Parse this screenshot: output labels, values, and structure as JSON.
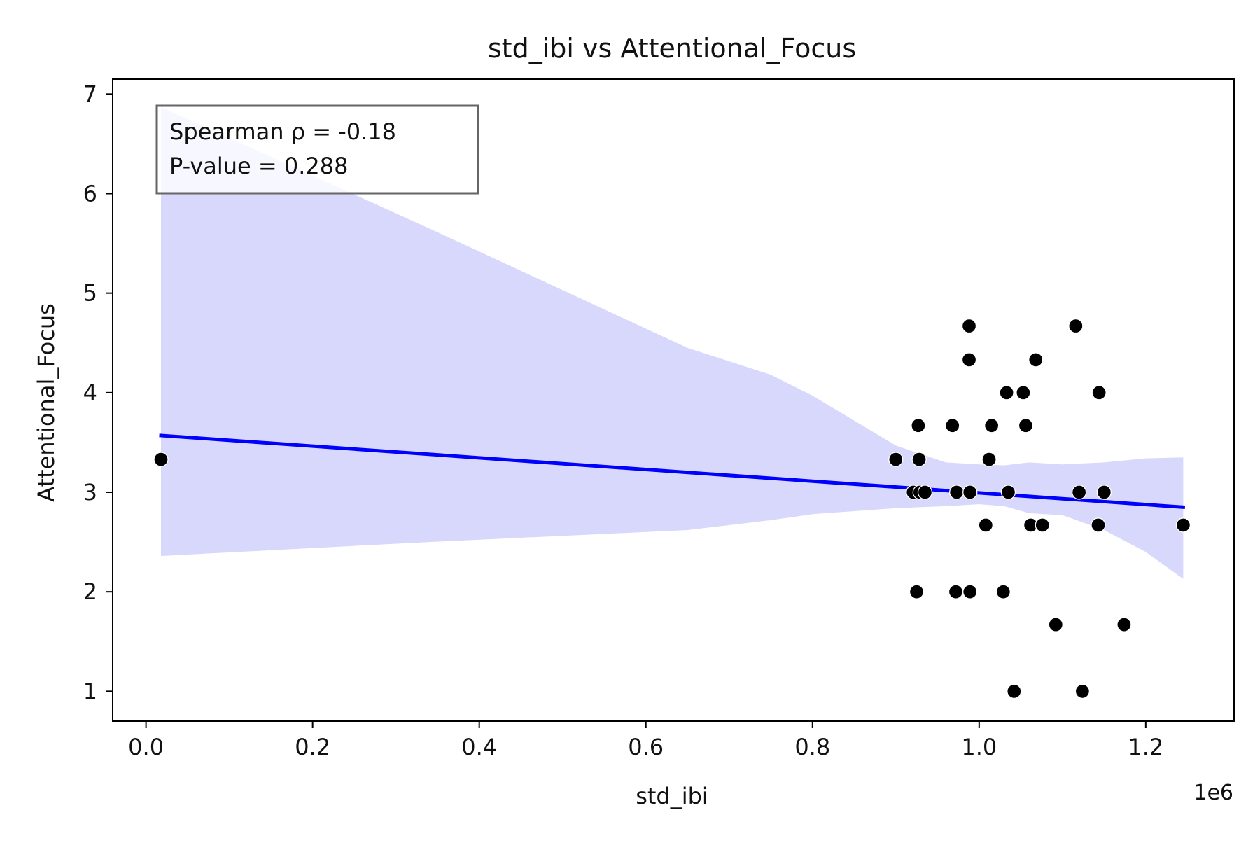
{
  "chart_data": {
    "type": "scatter",
    "title": "std_ibi vs Attentional_Focus",
    "xlabel": "std_ibi",
    "ylabel": "Attentional_Focus",
    "x_offset_label": "1e6",
    "x_tick_multiplier": 1000000,
    "xlim": [
      -40000,
      1306000
    ],
    "ylim": [
      0.7,
      7.15
    ],
    "x_ticks": [
      0.0,
      0.2,
      0.4,
      0.6,
      0.8,
      1.0,
      1.2
    ],
    "x_tick_labels": [
      "0.0",
      "0.2",
      "0.4",
      "0.6",
      "0.8",
      "1.0",
      "1.2"
    ],
    "y_ticks": [
      1,
      2,
      3,
      4,
      5,
      6,
      7
    ],
    "y_tick_labels": [
      "1",
      "2",
      "3",
      "4",
      "5",
      "6",
      "7"
    ],
    "grid": false,
    "annotation": {
      "lines": [
        "Spearman ρ = -0.18",
        "P-value = 0.288"
      ],
      "placement": "top-left"
    },
    "regression_line": {
      "x": [
        18000,
        1245000
      ],
      "y": [
        3.57,
        2.85
      ],
      "color": "#0000ff"
    },
    "confidence_band": {
      "color": "#d8d8fc",
      "x": [
        18000,
        340000,
        650000,
        750000,
        800000,
        850000,
        900000,
        960000,
        1000000,
        1030000,
        1060000,
        1100000,
        1150000,
        1200000,
        1245000
      ],
      "upper": [
        6.87,
        5.65,
        4.45,
        4.18,
        3.97,
        3.72,
        3.47,
        3.3,
        3.28,
        3.27,
        3.3,
        3.28,
        3.3,
        3.34,
        3.35
      ],
      "lower": [
        2.36,
        2.5,
        2.62,
        2.72,
        2.78,
        2.81,
        2.84,
        2.86,
        2.88,
        2.86,
        2.79,
        2.77,
        2.62,
        2.4,
        2.13
      ]
    },
    "series": [
      {
        "color": "#000000",
        "x": [
          18000,
          900000,
          921000,
          925000,
          927000,
          928000,
          929000,
          935000,
          968000,
          972000,
          973000,
          988000,
          988000,
          989000,
          989000,
          1008000,
          1012000,
          1015000,
          1029000,
          1033000,
          1035000,
          1042000,
          1053000,
          1056000,
          1062000,
          1068000,
          1076000,
          1092000,
          1116000,
          1120000,
          1124000,
          1143000,
          1144000,
          1150000,
          1174000,
          1245000
        ],
        "y": [
          3.33,
          3.33,
          3.0,
          2.0,
          3.67,
          3.33,
          3.0,
          3.0,
          3.67,
          2.0,
          3.0,
          4.67,
          4.33,
          3.0,
          2.0,
          2.67,
          3.33,
          3.67,
          2.0,
          4.0,
          3.0,
          1.0,
          4.0,
          3.67,
          2.67,
          4.33,
          2.67,
          1.67,
          4.67,
          3.0,
          1.0,
          2.67,
          4.0,
          3.0,
          1.67,
          2.67
        ]
      }
    ]
  }
}
